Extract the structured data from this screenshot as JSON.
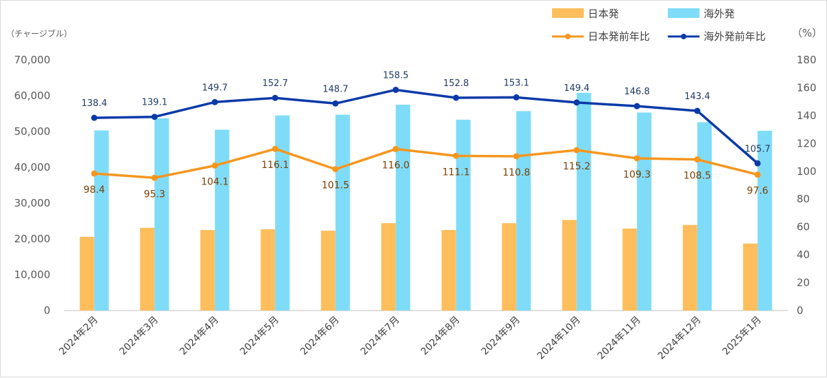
{
  "chart_data": {
    "type": "bar",
    "categories": [
      "2024年2月",
      "2024年3月",
      "2024年4月",
      "2024年5月",
      "2024年6月",
      "2024年7月",
      "2024年8月",
      "2024年9月",
      "2024年10月",
      "2024年11月",
      "2024年12月",
      "2025年1月"
    ],
    "series": [
      {
        "name": "日本発",
        "type": "bar",
        "axis": "left",
        "color": "#ffbe5c",
        "values": [
          20600,
          23100,
          22500,
          22700,
          22300,
          24400,
          22500,
          24400,
          25300,
          22900,
          23900,
          18700
        ]
      },
      {
        "name": "海外発",
        "type": "bar",
        "axis": "left",
        "color": "#7fdcf9",
        "values": [
          50300,
          53700,
          50500,
          54500,
          54700,
          57500,
          53300,
          55700,
          60800,
          55300,
          52600,
          50200
        ]
      },
      {
        "name": "日本発前年比",
        "type": "line",
        "axis": "right",
        "color": "#f5961e",
        "values": [
          98.4,
          95.3,
          104.1,
          116.1,
          101.5,
          116.0,
          111.1,
          110.8,
          115.2,
          109.3,
          108.5,
          97.6
        ],
        "labels": [
          "98.4",
          "95.3",
          "104.1",
          "116.1",
          "101.5",
          "116.0",
          "111.1",
          "110.8",
          "115.2",
          "109.3",
          "108.5",
          "97.6"
        ]
      },
      {
        "name": "海外発前年比",
        "type": "line",
        "axis": "right",
        "color": "#0a3aa8",
        "values": [
          138.4,
          139.1,
          149.7,
          152.7,
          148.7,
          158.5,
          152.8,
          153.1,
          149.4,
          146.8,
          143.4,
          105.7
        ],
        "labels": [
          "138.4",
          "139.1",
          "149.7",
          "152.7",
          "148.7",
          "158.5",
          "152.8",
          "153.1",
          "149.4",
          "146.8",
          "143.4",
          "105.7"
        ]
      }
    ],
    "y_left": {
      "label": "（チャージブル）",
      "lim": [
        0,
        70000
      ],
      "ticks": [
        "0",
        "10,000",
        "20,000",
        "30,000",
        "40,000",
        "50,000",
        "60,000",
        "70,000"
      ]
    },
    "y_right": {
      "label": "（%）",
      "lim": [
        0,
        180
      ],
      "ticks": [
        "0",
        "20",
        "40",
        "60",
        "80",
        "100",
        "120",
        "140",
        "160",
        "180"
      ]
    },
    "legend_position": "top-right",
    "grid": false
  }
}
